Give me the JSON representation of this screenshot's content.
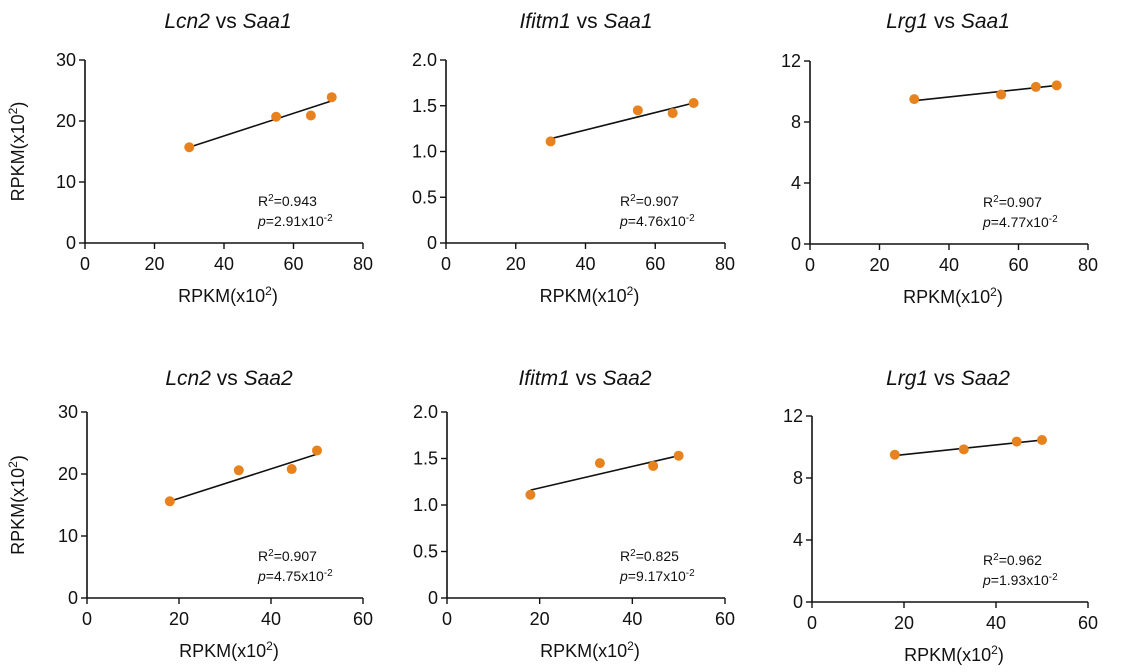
{
  "chart_data": [
    {
      "type": "scatter",
      "title": {
        "gene": "Lcn2",
        "mid": " vs ",
        "ref": "Saa1"
      },
      "xlabel": {
        "main": "RPKM(x10",
        "sup": "2",
        "end": ")"
      },
      "ylabel": {
        "main": "RPKM(x10",
        "sup": "2",
        "end": ")"
      },
      "xlim": [
        0,
        80
      ],
      "xticks": [
        0,
        20,
        40,
        60,
        80
      ],
      "ylim": [
        0,
        30
      ],
      "yticks": [
        0,
        10,
        20,
        30
      ],
      "x": [
        30,
        55,
        65,
        71
      ],
      "y": [
        15.7,
        20.7,
        20.9,
        23.9
      ],
      "fit": {
        "x": [
          30,
          71
        ],
        "y": [
          15.7,
          23.3
        ]
      },
      "r2": {
        "label": "R",
        "sup": "2",
        "value": "=0.943"
      },
      "p": {
        "label": "p",
        "value": "=2.91x10",
        "sup": "-2"
      }
    },
    {
      "type": "scatter",
      "title": {
        "gene": "Ifitm1",
        "mid": " vs ",
        "ref": "Saa1"
      },
      "xlabel": {
        "main": "RPKM(x10",
        "sup": "2",
        "end": ")"
      },
      "ylabel": {
        "main": "",
        "sup": "",
        "end": ""
      },
      "xlim": [
        0,
        80
      ],
      "xticks": [
        0,
        20,
        40,
        60,
        80
      ],
      "ylim": [
        0,
        2.0
      ],
      "yticks": [
        "0",
        "0.5",
        "1.0",
        "1.5",
        "2.0"
      ],
      "x": [
        30,
        55,
        65,
        71
      ],
      "y": [
        1.11,
        1.45,
        1.42,
        1.53
      ],
      "fit": {
        "x": [
          30,
          71
        ],
        "y": [
          1.14,
          1.53
        ]
      },
      "r2": {
        "label": "R",
        "sup": "2",
        "value": "=0.907"
      },
      "p": {
        "label": "p",
        "value": "=4.76x10",
        "sup": "-2"
      }
    },
    {
      "type": "scatter",
      "title": {
        "gene": "Lrg1",
        "mid": " vs ",
        "ref": "Saa1"
      },
      "xlabel": {
        "main": "RPKM(x10",
        "sup": "2",
        "end": ")"
      },
      "ylabel": {
        "main": "",
        "sup": "",
        "end": ""
      },
      "xlim": [
        0,
        80
      ],
      "xticks": [
        0,
        20,
        40,
        60,
        80
      ],
      "ylim": [
        0,
        12
      ],
      "yticks": [
        0,
        4,
        8,
        12
      ],
      "x": [
        30,
        55,
        65,
        71
      ],
      "y": [
        9.5,
        9.8,
        10.3,
        10.4
      ],
      "fit": {
        "x": [
          30,
          71
        ],
        "y": [
          9.4,
          10.4
        ]
      },
      "r2": {
        "label": "R",
        "sup": "2",
        "value": "=0.907"
      },
      "p": {
        "label": "p",
        "value": "=4.77x10",
        "sup": "-2"
      }
    },
    {
      "type": "scatter",
      "title": {
        "gene": "Lcn2",
        "mid": " vs ",
        "ref": "Saa2"
      },
      "xlabel": {
        "main": "RPKM(x10",
        "sup": "2",
        "end": ")"
      },
      "ylabel": {
        "main": "RPKM(x10",
        "sup": "2",
        "end": ")"
      },
      "xlim": [
        0,
        60
      ],
      "xticks": [
        0,
        20,
        40,
        60
      ],
      "ylim": [
        0,
        30
      ],
      "yticks": [
        0,
        10,
        20,
        30
      ],
      "x": [
        18,
        33,
        44.5,
        50
      ],
      "y": [
        15.6,
        20.6,
        20.8,
        23.8
      ],
      "fit": {
        "x": [
          18,
          50
        ],
        "y": [
          15.6,
          23.2
        ]
      },
      "r2": {
        "label": "R",
        "sup": "2",
        "value": "=0.907"
      },
      "p": {
        "label": "p",
        "value": "=4.75x10",
        "sup": "-2"
      }
    },
    {
      "type": "scatter",
      "title": {
        "gene": "Ifitm1",
        "mid": " vs ",
        "ref": "Saa2"
      },
      "xlabel": {
        "main": "RPKM(x10",
        "sup": "2",
        "end": ")"
      },
      "ylabel": {
        "main": "",
        "sup": "",
        "end": ""
      },
      "xlim": [
        0,
        60
      ],
      "xticks": [
        0,
        20,
        40,
        60
      ],
      "ylim": [
        0,
        2.0
      ],
      "yticks": [
        "0",
        "0.5",
        "1.0",
        "1.5",
        "2.0"
      ],
      "x": [
        18,
        33,
        44.5,
        50
      ],
      "y": [
        1.11,
        1.45,
        1.42,
        1.53
      ],
      "fit": {
        "x": [
          18,
          50
        ],
        "y": [
          1.16,
          1.53
        ]
      },
      "r2": {
        "label": "R",
        "sup": "2",
        "value": "=0.825"
      },
      "p": {
        "label": "p",
        "value": "=9.17x10",
        "sup": "-2"
      }
    },
    {
      "type": "scatter",
      "title": {
        "gene": "Lrg1",
        "mid": " vs ",
        "ref": "Saa2"
      },
      "xlabel": {
        "main": "RPKM(x10",
        "sup": "2",
        "end": ")"
      },
      "ylabel": {
        "main": "",
        "sup": "",
        "end": ""
      },
      "xlim": [
        0,
        60
      ],
      "xticks": [
        0,
        20,
        40,
        60
      ],
      "ylim": [
        0,
        12
      ],
      "yticks": [
        0,
        4,
        8,
        12
      ],
      "x": [
        18,
        33,
        44.5,
        50
      ],
      "y": [
        9.5,
        9.85,
        10.35,
        10.45
      ],
      "fit": {
        "x": [
          18,
          50
        ],
        "y": [
          9.45,
          10.45
        ]
      },
      "r2": {
        "label": "R",
        "sup": "2",
        "value": "=0.962"
      },
      "p": {
        "label": "p",
        "value": "=1.93x10",
        "sup": "-2"
      }
    }
  ],
  "colors": {
    "points": "#e8821e",
    "axes": "#111111",
    "fit": "#111111"
  }
}
